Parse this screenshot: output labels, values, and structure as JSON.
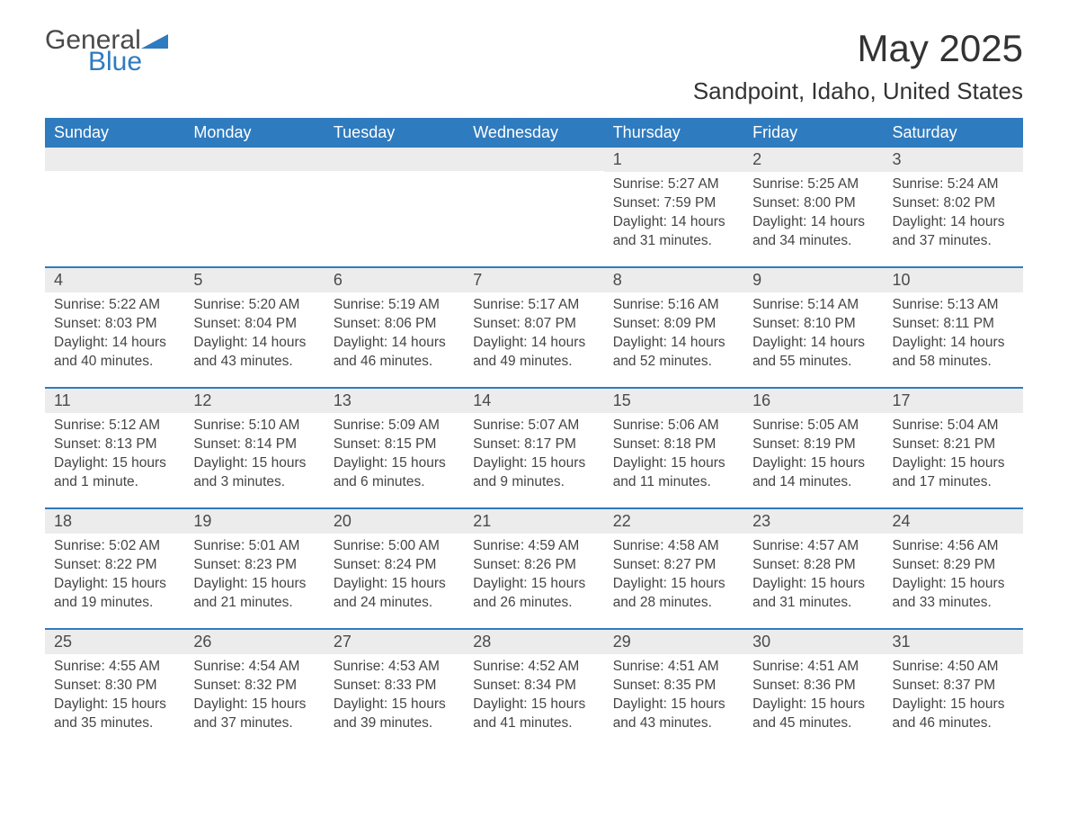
{
  "logo": {
    "general": "General",
    "blue": "Blue",
    "tri_color": "#2f7bbf"
  },
  "title": "May 2025",
  "location": "Sandpoint, Idaho, United States",
  "accent_color": "#2f7bbf",
  "header_bg": "#2f7bbf",
  "daynum_bg": "#ececec",
  "dow": [
    "Sunday",
    "Monday",
    "Tuesday",
    "Wednesday",
    "Thursday",
    "Friday",
    "Saturday"
  ],
  "weeks": [
    [
      null,
      null,
      null,
      null,
      {
        "n": "1",
        "sr": "Sunrise: 5:27 AM",
        "ss": "Sunset: 7:59 PM",
        "dl1": "Daylight: 14 hours",
        "dl2": "and 31 minutes."
      },
      {
        "n": "2",
        "sr": "Sunrise: 5:25 AM",
        "ss": "Sunset: 8:00 PM",
        "dl1": "Daylight: 14 hours",
        "dl2": "and 34 minutes."
      },
      {
        "n": "3",
        "sr": "Sunrise: 5:24 AM",
        "ss": "Sunset: 8:02 PM",
        "dl1": "Daylight: 14 hours",
        "dl2": "and 37 minutes."
      }
    ],
    [
      {
        "n": "4",
        "sr": "Sunrise: 5:22 AM",
        "ss": "Sunset: 8:03 PM",
        "dl1": "Daylight: 14 hours",
        "dl2": "and 40 minutes."
      },
      {
        "n": "5",
        "sr": "Sunrise: 5:20 AM",
        "ss": "Sunset: 8:04 PM",
        "dl1": "Daylight: 14 hours",
        "dl2": "and 43 minutes."
      },
      {
        "n": "6",
        "sr": "Sunrise: 5:19 AM",
        "ss": "Sunset: 8:06 PM",
        "dl1": "Daylight: 14 hours",
        "dl2": "and 46 minutes."
      },
      {
        "n": "7",
        "sr": "Sunrise: 5:17 AM",
        "ss": "Sunset: 8:07 PM",
        "dl1": "Daylight: 14 hours",
        "dl2": "and 49 minutes."
      },
      {
        "n": "8",
        "sr": "Sunrise: 5:16 AM",
        "ss": "Sunset: 8:09 PM",
        "dl1": "Daylight: 14 hours",
        "dl2": "and 52 minutes."
      },
      {
        "n": "9",
        "sr": "Sunrise: 5:14 AM",
        "ss": "Sunset: 8:10 PM",
        "dl1": "Daylight: 14 hours",
        "dl2": "and 55 minutes."
      },
      {
        "n": "10",
        "sr": "Sunrise: 5:13 AM",
        "ss": "Sunset: 8:11 PM",
        "dl1": "Daylight: 14 hours",
        "dl2": "and 58 minutes."
      }
    ],
    [
      {
        "n": "11",
        "sr": "Sunrise: 5:12 AM",
        "ss": "Sunset: 8:13 PM",
        "dl1": "Daylight: 15 hours",
        "dl2": "and 1 minute."
      },
      {
        "n": "12",
        "sr": "Sunrise: 5:10 AM",
        "ss": "Sunset: 8:14 PM",
        "dl1": "Daylight: 15 hours",
        "dl2": "and 3 minutes."
      },
      {
        "n": "13",
        "sr": "Sunrise: 5:09 AM",
        "ss": "Sunset: 8:15 PM",
        "dl1": "Daylight: 15 hours",
        "dl2": "and 6 minutes."
      },
      {
        "n": "14",
        "sr": "Sunrise: 5:07 AM",
        "ss": "Sunset: 8:17 PM",
        "dl1": "Daylight: 15 hours",
        "dl2": "and 9 minutes."
      },
      {
        "n": "15",
        "sr": "Sunrise: 5:06 AM",
        "ss": "Sunset: 8:18 PM",
        "dl1": "Daylight: 15 hours",
        "dl2": "and 11 minutes."
      },
      {
        "n": "16",
        "sr": "Sunrise: 5:05 AM",
        "ss": "Sunset: 8:19 PM",
        "dl1": "Daylight: 15 hours",
        "dl2": "and 14 minutes."
      },
      {
        "n": "17",
        "sr": "Sunrise: 5:04 AM",
        "ss": "Sunset: 8:21 PM",
        "dl1": "Daylight: 15 hours",
        "dl2": "and 17 minutes."
      }
    ],
    [
      {
        "n": "18",
        "sr": "Sunrise: 5:02 AM",
        "ss": "Sunset: 8:22 PM",
        "dl1": "Daylight: 15 hours",
        "dl2": "and 19 minutes."
      },
      {
        "n": "19",
        "sr": "Sunrise: 5:01 AM",
        "ss": "Sunset: 8:23 PM",
        "dl1": "Daylight: 15 hours",
        "dl2": "and 21 minutes."
      },
      {
        "n": "20",
        "sr": "Sunrise: 5:00 AM",
        "ss": "Sunset: 8:24 PM",
        "dl1": "Daylight: 15 hours",
        "dl2": "and 24 minutes."
      },
      {
        "n": "21",
        "sr": "Sunrise: 4:59 AM",
        "ss": "Sunset: 8:26 PM",
        "dl1": "Daylight: 15 hours",
        "dl2": "and 26 minutes."
      },
      {
        "n": "22",
        "sr": "Sunrise: 4:58 AM",
        "ss": "Sunset: 8:27 PM",
        "dl1": "Daylight: 15 hours",
        "dl2": "and 28 minutes."
      },
      {
        "n": "23",
        "sr": "Sunrise: 4:57 AM",
        "ss": "Sunset: 8:28 PM",
        "dl1": "Daylight: 15 hours",
        "dl2": "and 31 minutes."
      },
      {
        "n": "24",
        "sr": "Sunrise: 4:56 AM",
        "ss": "Sunset: 8:29 PM",
        "dl1": "Daylight: 15 hours",
        "dl2": "and 33 minutes."
      }
    ],
    [
      {
        "n": "25",
        "sr": "Sunrise: 4:55 AM",
        "ss": "Sunset: 8:30 PM",
        "dl1": "Daylight: 15 hours",
        "dl2": "and 35 minutes."
      },
      {
        "n": "26",
        "sr": "Sunrise: 4:54 AM",
        "ss": "Sunset: 8:32 PM",
        "dl1": "Daylight: 15 hours",
        "dl2": "and 37 minutes."
      },
      {
        "n": "27",
        "sr": "Sunrise: 4:53 AM",
        "ss": "Sunset: 8:33 PM",
        "dl1": "Daylight: 15 hours",
        "dl2": "and 39 minutes."
      },
      {
        "n": "28",
        "sr": "Sunrise: 4:52 AM",
        "ss": "Sunset: 8:34 PM",
        "dl1": "Daylight: 15 hours",
        "dl2": "and 41 minutes."
      },
      {
        "n": "29",
        "sr": "Sunrise: 4:51 AM",
        "ss": "Sunset: 8:35 PM",
        "dl1": "Daylight: 15 hours",
        "dl2": "and 43 minutes."
      },
      {
        "n": "30",
        "sr": "Sunrise: 4:51 AM",
        "ss": "Sunset: 8:36 PM",
        "dl1": "Daylight: 15 hours",
        "dl2": "and 45 minutes."
      },
      {
        "n": "31",
        "sr": "Sunrise: 4:50 AM",
        "ss": "Sunset: 8:37 PM",
        "dl1": "Daylight: 15 hours",
        "dl2": "and 46 minutes."
      }
    ]
  ]
}
